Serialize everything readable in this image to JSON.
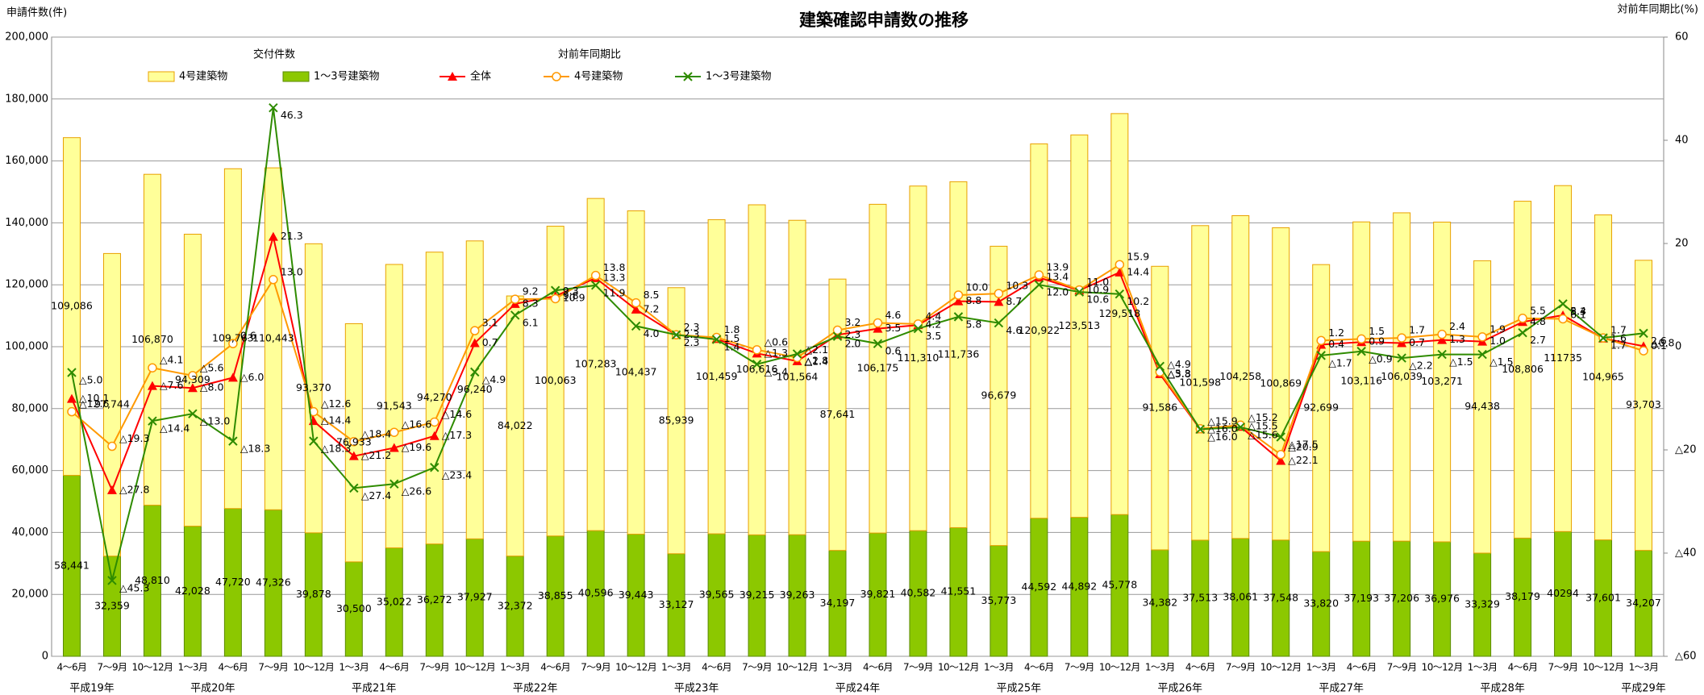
{
  "chart_data": {
    "type": "combo",
    "title": "建築確認申請数の推移",
    "y_label": "申請件数(件)",
    "y2_label": "対前年同期比(%)",
    "legend_groups": [
      "交付件数",
      "対前年同期比"
    ],
    "categories": [
      "4～6月",
      "7～9月",
      "10～12月",
      "1～3月",
      "4～6月",
      "7～9月",
      "10～12月",
      "1～3月",
      "4～6月",
      "7～9月",
      "10～12月",
      "1～3月",
      "4～6月",
      "7～9月",
      "10～12月",
      "1～3月",
      "4～6月",
      "7～9月",
      "10～12月",
      "1～3月",
      "4～6月",
      "7～9月",
      "10～12月",
      "1～3月",
      "4～6月",
      "7～9月",
      "10～12月",
      "1～3月",
      "4～6月",
      "7～9月",
      "10～12月",
      "1～3月",
      "4～6月",
      "7～9月",
      "10～12月",
      "1～3月",
      "4～6月",
      "7～9月",
      "10～12月",
      "1～3月"
    ],
    "years": [
      "平成19年",
      null,
      null,
      "平成20年",
      null,
      null,
      null,
      "平成21年",
      null,
      null,
      null,
      "平成22年",
      null,
      null,
      null,
      "平成23年",
      null,
      null,
      null,
      "平成24年",
      null,
      null,
      null,
      "平成25年",
      null,
      null,
      null,
      "平成26年",
      null,
      null,
      null,
      "平成27年",
      null,
      null,
      null,
      "平成28年",
      null,
      null,
      null,
      "平成29年"
    ],
    "ylim": [
      0,
      200000
    ],
    "yticks": [
      0,
      {
        "value": 20000,
        "label": "20,000"
      },
      {
        "value": 40000,
        "label": "40,000"
      },
      {
        "value": 60000,
        "label": "60,000"
      },
      {
        "value": 80000,
        "label": "80,000"
      },
      {
        "value": 100000,
        "label": "100,000"
      },
      {
        "value": 120000,
        "label": "120,000"
      },
      {
        "value": 140000,
        "label": "140,000"
      },
      {
        "value": 160000,
        "label": "160,000"
      },
      {
        "value": 180000,
        "label": "180,000"
      },
      {
        "value": 200000,
        "label": "200,000"
      }
    ],
    "y2lim": [
      -60,
      60
    ],
    "y2ticks": [
      {
        "value": -60,
        "label": "△60"
      },
      {
        "value": -40,
        "label": "△40"
      },
      {
        "value": -20,
        "label": "△20"
      },
      0,
      20,
      40,
      60
    ],
    "grid": true,
    "series": [
      {
        "name": "1～3号建築物",
        "type": "bar",
        "color": "#8cc800",
        "values": [
          58441,
          32359,
          48810,
          42028,
          47720,
          47326,
          39878,
          30500,
          35022,
          36272,
          37927,
          32372,
          38855,
          40596,
          39443,
          33127,
          39565,
          39215,
          39263,
          34197,
          39821,
          40582,
          41551,
          35773,
          44592,
          44892,
          45778,
          34382,
          37513,
          38061,
          37548,
          33820,
          37193,
          37206,
          36976,
          33329,
          38179,
          40294,
          37601,
          34207
        ],
        "value_labels": [
          "58,441",
          "32,359",
          "48,810",
          "42,028",
          "47,720",
          "47,326",
          "39,878",
          "30,500",
          "35,022",
          "36,272",
          "37,927",
          "32,372",
          "38,855",
          "40,596",
          "39,443",
          "33,127",
          "39,565",
          "39,215",
          "39,263",
          "34,197",
          "39,821",
          "40,582",
          "41,551",
          "35,773",
          "44,592",
          "44,892",
          "45,778",
          "34,382",
          "37,513",
          "38,061",
          "37,548",
          "33,820",
          "37,193",
          "37,206",
          "36,976",
          "33,329",
          "38,179",
          "40294",
          "37,601",
          "34,207"
        ]
      },
      {
        "name": "4号建築物",
        "type": "bar",
        "color": "#ffff99",
        "values": [
          109086,
          97744,
          106870,
          94309,
          109763,
          110443,
          93370,
          76933,
          91543,
          94270,
          96240,
          84022,
          100063,
          107283,
          104437,
          85939,
          101459,
          106616,
          101564,
          87641,
          106175,
          111310,
          111736,
          96679,
          120922,
          123513,
          129518,
          91586,
          101598,
          104258,
          100869,
          92699,
          103116,
          106039,
          103271,
          94438,
          108806,
          111735,
          104965,
          93703
        ],
        "value_labels": [
          "109,086",
          "97,744",
          "106,870",
          "94,309",
          "109,763",
          "110,443",
          "93,370",
          "76,933",
          "91,543",
          "94,270",
          "96,240",
          "84,022",
          "100,063",
          "107,283",
          "104,437",
          "85,939",
          "101,459",
          "106,616",
          "101,564",
          "87,641",
          "106,175",
          "111,310",
          "111,736",
          "96,679",
          "120,922",
          "123,513",
          "129,518",
          "91,586",
          "101,598",
          "104,258",
          "100,869",
          "92,699",
          "103,116",
          "106,039",
          "103,271",
          "94,438",
          "108,806",
          "111735",
          "104,965",
          "93,703"
        ]
      },
      {
        "name": "全体",
        "type": "line",
        "axis": "y2",
        "color": "#ff0000",
        "marker": "triangle",
        "values": [
          -10.1,
          -27.8,
          -7.6,
          -8.0,
          -6.0,
          21.3,
          -14.4,
          -21.2,
          -19.6,
          -17.3,
          0.7,
          8.3,
          9.8,
          13.3,
          7.2,
          2.3,
          1.5,
          -1.3,
          -2.8,
          2.3,
          3.5,
          4.2,
          8.8,
          8.7,
          13.4,
          10.9,
          14.4,
          -5.3,
          -16.0,
          -15.5,
          -22.1,
          0.4,
          0.9,
          0.7,
          1.3,
          1.0,
          4.8,
          6.1,
          1.6,
          0.1
        ],
        "value_labels": [
          "△10.1",
          "△27.8",
          "△7.6",
          "△8.0",
          "△6.0",
          "21.3",
          "△14.4",
          "△21.2",
          "△19.6",
          "△17.3",
          "0.7",
          "8.3",
          "9.8",
          "13.3",
          "7.2",
          "2.3",
          "1.5",
          "△1.3",
          "△2.8",
          "2.3",
          "3.5",
          "4.2",
          "8.8",
          "8.7",
          "13.4",
          "10.9",
          "14.4",
          "△5.3",
          "△16.0",
          "△15.5",
          "△22.1",
          "0.4",
          "0.9",
          "0.7",
          "1.3",
          "1.0",
          "4.8",
          "6.1",
          "1.6",
          "0.1"
        ]
      },
      {
        "name": "4号建築物",
        "type": "line",
        "axis": "y2",
        "color": "#ff9900",
        "marker": "circle",
        "values": [
          -12.6,
          -19.3,
          -4.1,
          -5.6,
          0.6,
          13.0,
          -12.6,
          -18.4,
          -16.6,
          -14.6,
          3.1,
          9.2,
          9.3,
          13.8,
          8.5,
          2.3,
          1.8,
          -0.6,
          -2.1,
          3.2,
          4.6,
          4.4,
          10.0,
          10.3,
          13.9,
          11.0,
          15.9,
          -4.9,
          -15.9,
          -15.2,
          -20.9,
          1.2,
          1.5,
          1.7,
          2.4,
          1.9,
          5.5,
          5.4,
          1.7,
          -0.8
        ],
        "value_labels": [
          "△12.6",
          "△19.3",
          "△4.1",
          "△5.6",
          "0.6",
          "13.0",
          "△12.6",
          "△18.4",
          "△16.6",
          "△14.6",
          "3.1",
          "9.2",
          "9.3",
          "13.8",
          "8.5",
          "2.3",
          "1.8",
          "△0.6",
          "△2.1",
          "3.2",
          "4.6",
          "4.4",
          "10.0",
          "10.3",
          "13.9",
          "11.0",
          "15.9",
          "△4.9",
          "△15.9",
          "△15.2",
          "△20.9",
          "1.2",
          "1.5",
          "1.7",
          "2.4",
          "1.9",
          "5.5",
          "5.4",
          "1.7",
          "△0.8"
        ]
      },
      {
        "name": "1～3号建築物",
        "type": "line",
        "axis": "y2",
        "color": "#2e8b00",
        "marker": "x",
        "values": [
          -5.0,
          -45.3,
          -14.4,
          -13.0,
          -18.3,
          46.3,
          -18.3,
          -27.4,
          -26.6,
          -23.4,
          -4.9,
          6.1,
          10.9,
          11.9,
          4.0,
          2.3,
          1.4,
          -3.4,
          -1.4,
          2.0,
          0.6,
          3.5,
          5.8,
          4.6,
          12.0,
          10.6,
          10.2,
          -3.8,
          -16.0,
          -15.6,
          -17.5,
          -1.7,
          -0.9,
          -2.2,
          -1.5,
          -1.5,
          2.7,
          8.3,
          1.7,
          2.6
        ],
        "value_labels": [
          "△5.0",
          "△45.3",
          "△14.4",
          "△13.0",
          "△18.3",
          "46.3",
          "△18.3",
          "△27.4",
          "△26.6",
          "△23.4",
          "△4.9",
          "6.1",
          "10.9",
          "11.9",
          "4.0",
          "2.3",
          "1.4",
          "△3.4",
          "△1.4",
          "2.0",
          "0.6",
          "3.5",
          "5.8",
          "4.6",
          "12.0",
          "10.6",
          "10.2",
          "△3.8",
          "△16.0",
          "△15.6",
          "△17.5",
          "△1.7",
          "△0.9",
          "△2.2",
          "△1.5",
          "△1.5",
          "2.7",
          "8.3",
          "1.7",
          "2.6"
        ]
      }
    ]
  }
}
